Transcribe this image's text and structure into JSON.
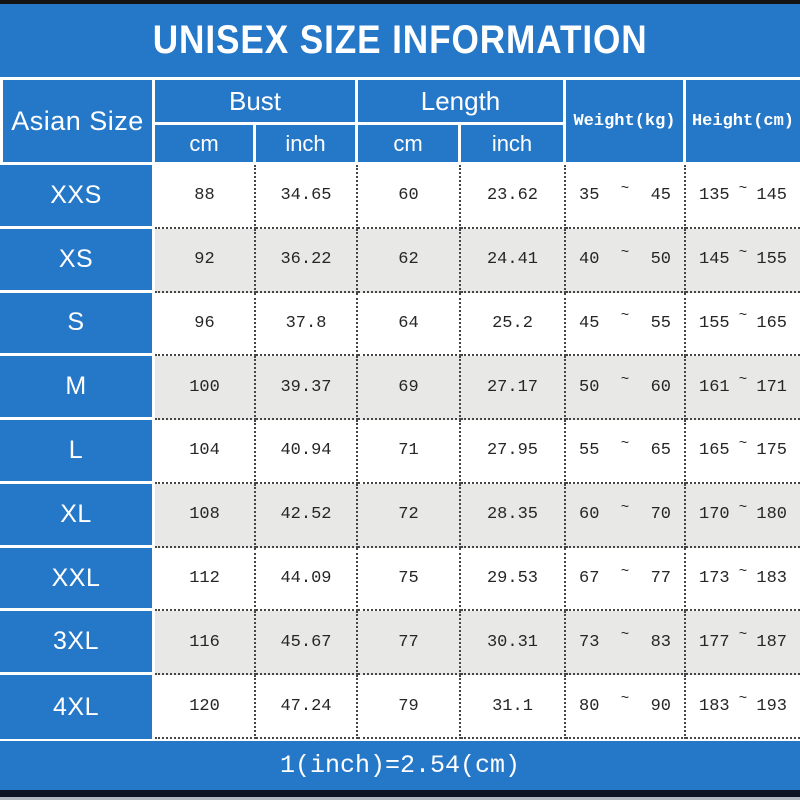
{
  "title": "UNISEX SIZE INFORMATION",
  "header": {
    "size_col": "Asian Size",
    "bust_group": "Bust",
    "length_group": "Length",
    "sub_cm": "cm",
    "sub_inch": "inch",
    "weight": "Weight(kg)",
    "height": "Height(cm)"
  },
  "ui": {
    "tilde": "~"
  },
  "footnote": "1(inch)=2.54(cm)",
  "colors": {
    "accent_blue": "#2577c8",
    "alt_row": "#e8e8e6",
    "data_text": "#262626",
    "dotted_border": "#454545",
    "top_bar": "#141414",
    "bottom_bar": "#0d1424",
    "bottom_edge": "#b2b8c0"
  },
  "chart_data": {
    "type": "table",
    "title": "UNISEX SIZE INFORMATION",
    "columns": [
      "Asian Size",
      "Bust cm",
      "Bust inch",
      "Length cm",
      "Length inch",
      "Weight(kg)",
      "Height(cm)"
    ],
    "rows": [
      {
        "size": "XXS",
        "bust_cm": "88",
        "bust_inch": "34.65",
        "length_cm": "60",
        "length_inch": "23.62",
        "weight_min": "35",
        "weight_max": "45",
        "height_min": "135",
        "height_max": "145"
      },
      {
        "size": "XS",
        "bust_cm": "92",
        "bust_inch": "36.22",
        "length_cm": "62",
        "length_inch": "24.41",
        "weight_min": "40",
        "weight_max": "50",
        "height_min": "145",
        "height_max": "155"
      },
      {
        "size": "S",
        "bust_cm": "96",
        "bust_inch": "37.8",
        "length_cm": "64",
        "length_inch": "25.2",
        "weight_min": "45",
        "weight_max": "55",
        "height_min": "155",
        "height_max": "165"
      },
      {
        "size": "M",
        "bust_cm": "100",
        "bust_inch": "39.37",
        "length_cm": "69",
        "length_inch": "27.17",
        "weight_min": "50",
        "weight_max": "60",
        "height_min": "161",
        "height_max": "171"
      },
      {
        "size": "L",
        "bust_cm": "104",
        "bust_inch": "40.94",
        "length_cm": "71",
        "length_inch": "27.95",
        "weight_min": "55",
        "weight_max": "65",
        "height_min": "165",
        "height_max": "175"
      },
      {
        "size": "XL",
        "bust_cm": "108",
        "bust_inch": "42.52",
        "length_cm": "72",
        "length_inch": "28.35",
        "weight_min": "60",
        "weight_max": "70",
        "height_min": "170",
        "height_max": "180"
      },
      {
        "size": "XXL",
        "bust_cm": "112",
        "bust_inch": "44.09",
        "length_cm": "75",
        "length_inch": "29.53",
        "weight_min": "67",
        "weight_max": "77",
        "height_min": "173",
        "height_max": "183"
      },
      {
        "size": "3XL",
        "bust_cm": "116",
        "bust_inch": "45.67",
        "length_cm": "77",
        "length_inch": "30.31",
        "weight_min": "73",
        "weight_max": "83",
        "height_min": "177",
        "height_max": "187"
      },
      {
        "size": "4XL",
        "bust_cm": "120",
        "bust_inch": "47.24",
        "length_cm": "79",
        "length_inch": "31.1",
        "weight_min": "80",
        "weight_max": "90",
        "height_min": "183",
        "height_max": "193"
      }
    ],
    "footnote": "1(inch)=2.54(cm)"
  }
}
